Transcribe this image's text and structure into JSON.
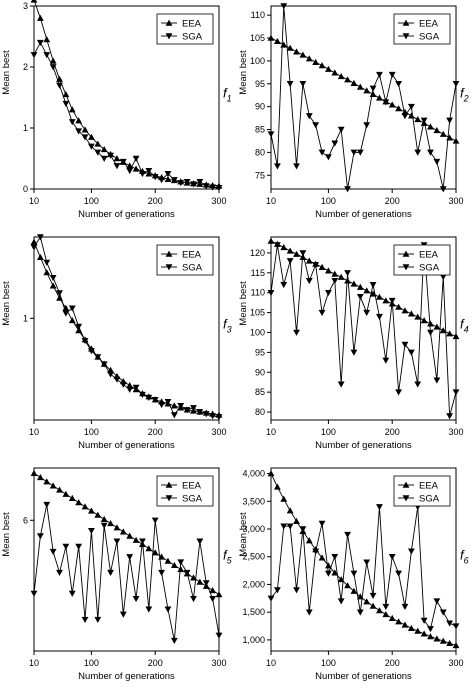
{
  "chart_data": [
    {
      "type": "line",
      "panel_label": "f",
      "panel_label_sub": "1",
      "xlabel": "Number of generations",
      "ylabel": "Mean best",
      "xlim": [
        10,
        300
      ],
      "ylim": [
        0,
        3
      ],
      "x_ticks": [
        10,
        100,
        200,
        300
      ],
      "y_ticks": [
        0,
        1,
        2,
        3
      ],
      "legend": "top-right",
      "x": [
        10,
        20,
        30,
        40,
        50,
        60,
        70,
        80,
        90,
        100,
        110,
        120,
        130,
        140,
        150,
        160,
        170,
        180,
        190,
        200,
        210,
        220,
        230,
        240,
        250,
        260,
        270,
        280,
        290,
        300
      ],
      "series": [
        {
          "name": "EEA",
          "marker": "triangle-up",
          "values": [
            3.1,
            2.8,
            2.45,
            2.1,
            1.8,
            1.55,
            1.3,
            1.12,
            0.97,
            0.85,
            0.74,
            0.65,
            0.57,
            0.5,
            0.44,
            0.38,
            0.33,
            0.29,
            0.25,
            0.22,
            0.19,
            0.16,
            0.14,
            0.12,
            0.1,
            0.09,
            0.08,
            0.07,
            0.06,
            0.05
          ]
        },
        {
          "name": "SGA",
          "marker": "triangle-down",
          "values": [
            2.2,
            2.4,
            2.2,
            2.0,
            1.7,
            1.4,
            1.1,
            0.95,
            0.85,
            0.7,
            0.6,
            0.5,
            0.55,
            0.38,
            0.45,
            0.3,
            0.5,
            0.25,
            0.3,
            0.2,
            0.15,
            0.25,
            0.15,
            0.1,
            0.12,
            0.08,
            0.12,
            0.05,
            0.03,
            0.02
          ]
        }
      ]
    },
    {
      "type": "line",
      "panel_label": "f",
      "panel_label_sub": "2",
      "xlabel": "Number of generations",
      "ylabel": "Mean best",
      "xlim": [
        10,
        300
      ],
      "ylim": [
        72,
        112
      ],
      "x_ticks": [
        10,
        100,
        200,
        300
      ],
      "y_ticks": [
        75,
        80,
        85,
        90,
        95,
        100,
        105,
        110
      ],
      "legend": "top-right",
      "x": [
        10,
        20,
        30,
        40,
        50,
        60,
        70,
        80,
        90,
        100,
        110,
        120,
        130,
        140,
        150,
        160,
        170,
        180,
        190,
        200,
        210,
        220,
        230,
        240,
        250,
        260,
        270,
        280,
        290,
        300
      ],
      "series": [
        {
          "name": "EEA",
          "marker": "triangle-up",
          "values": [
            105,
            104.3,
            103.5,
            102.8,
            102,
            101.3,
            100.5,
            99.7,
            99,
            98.2,
            97.4,
            96.6,
            95.9,
            95.1,
            94.3,
            93.5,
            92.7,
            91.9,
            91.1,
            90.4,
            89.6,
            88.8,
            88,
            87.2,
            86.4,
            85.6,
            84.8,
            84,
            83.2,
            82.5
          ]
        },
        {
          "name": "SGA",
          "marker": "triangle-down",
          "values": [
            84,
            77,
            112,
            95,
            77,
            95,
            88,
            86,
            80,
            79,
            82,
            85,
            72,
            80,
            80,
            86,
            94,
            97,
            91,
            97,
            95,
            88,
            90,
            80,
            87,
            80,
            78,
            72,
            87,
            95
          ]
        }
      ]
    },
    {
      "type": "line",
      "panel_label": "f",
      "panel_label_sub": "3",
      "xlabel": "Number of generations",
      "ylabel": "Mean best",
      "xlim": [
        10,
        300
      ],
      "ylim": [
        0,
        1.8
      ],
      "x_ticks": [
        10,
        100,
        200,
        300
      ],
      "y_ticks": [
        1
      ],
      "legend": "top-right",
      "x": [
        10,
        20,
        30,
        40,
        50,
        60,
        70,
        80,
        90,
        100,
        110,
        120,
        130,
        140,
        150,
        160,
        170,
        180,
        190,
        200,
        210,
        220,
        230,
        240,
        250,
        260,
        270,
        280,
        290,
        300
      ],
      "series": [
        {
          "name": "EEA",
          "marker": "triangle-up",
          "values": [
            1.75,
            1.6,
            1.45,
            1.32,
            1.2,
            1.1,
            0.98,
            0.88,
            0.79,
            0.7,
            0.62,
            0.55,
            0.49,
            0.43,
            0.38,
            0.34,
            0.3,
            0.26,
            0.23,
            0.2,
            0.18,
            0.16,
            0.14,
            0.12,
            0.1,
            0.09,
            0.08,
            0.07,
            0.06,
            0.05
          ]
        },
        {
          "name": "SGA",
          "marker": "triangle-down",
          "values": [
            1.7,
            1.8,
            1.55,
            1.4,
            1.25,
            1.05,
            1.1,
            0.92,
            0.78,
            0.68,
            0.62,
            0.55,
            0.45,
            0.4,
            0.35,
            0.3,
            0.32,
            0.25,
            0.22,
            0.2,
            0.15,
            0.18,
            0.05,
            0.14,
            0.1,
            0.12,
            0.08,
            0.06,
            0.04,
            0.03
          ]
        }
      ]
    },
    {
      "type": "line",
      "panel_label": "f",
      "panel_label_sub": "4",
      "xlabel": "Number of generations",
      "ylabel": "Mean best",
      "xlim": [
        10,
        300
      ],
      "ylim": [
        78,
        124
      ],
      "x_ticks": [
        10,
        100,
        200,
        300
      ],
      "y_ticks": [
        80,
        85,
        90,
        95,
        100,
        105,
        110,
        115,
        120
      ],
      "legend": "top-right",
      "x": [
        10,
        20,
        30,
        40,
        50,
        60,
        70,
        80,
        90,
        100,
        110,
        120,
        130,
        140,
        150,
        160,
        170,
        180,
        190,
        200,
        210,
        220,
        230,
        240,
        250,
        260,
        270,
        280,
        290,
        300
      ],
      "series": [
        {
          "name": "EEA",
          "marker": "triangle-up",
          "values": [
            123,
            122.2,
            121.4,
            120.5,
            119.7,
            118.9,
            118,
            117.2,
            116.4,
            115.5,
            114.7,
            113.9,
            113,
            112.2,
            111.4,
            110.5,
            109.7,
            108.9,
            108,
            107.2,
            106.4,
            105.5,
            104.7,
            103.9,
            103,
            102.2,
            101.4,
            100.5,
            99.7,
            99
          ]
        },
        {
          "name": "SGA",
          "marker": "triangle-down",
          "values": [
            110,
            122,
            112,
            118,
            100,
            120,
            113,
            117,
            105,
            110,
            113,
            87,
            115,
            95,
            109,
            105,
            112,
            104,
            93,
            108,
            85,
            97,
            95,
            87,
            122,
            100,
            88,
            114,
            79,
            85
          ]
        }
      ]
    },
    {
      "type": "line",
      "panel_label": "f",
      "panel_label_sub": "5",
      "xlabel": "Number of generations",
      "ylabel": "Mean best",
      "xlim": [
        10,
        300
      ],
      "ylim": [
        3.5,
        7
      ],
      "x_ticks": [
        10,
        100,
        200,
        300
      ],
      "y_ticks": [
        6
      ],
      "legend": "top-right",
      "x": [
        10,
        20,
        30,
        40,
        50,
        60,
        70,
        80,
        90,
        100,
        110,
        120,
        130,
        140,
        150,
        160,
        170,
        180,
        190,
        200,
        210,
        220,
        230,
        240,
        250,
        260,
        270,
        280,
        290,
        300
      ],
      "series": [
        {
          "name": "EEA",
          "marker": "triangle-up",
          "values": [
            6.9,
            6.82,
            6.74,
            6.66,
            6.58,
            6.5,
            6.42,
            6.34,
            6.26,
            6.18,
            6.1,
            6.02,
            5.94,
            5.86,
            5.78,
            5.7,
            5.62,
            5.54,
            5.46,
            5.38,
            5.3,
            5.22,
            5.14,
            5.06,
            4.98,
            4.9,
            4.82,
            4.74,
            4.66,
            4.58
          ]
        },
        {
          "name": "SGA",
          "marker": "triangle-down",
          "values": [
            4.6,
            5.7,
            6.3,
            5.4,
            5.0,
            5.5,
            4.6,
            5.5,
            4.1,
            5.8,
            4.1,
            5.9,
            5.0,
            5.6,
            4.2,
            5.3,
            4.5,
            5.6,
            4.3,
            6.0,
            5.0,
            4.3,
            3.7,
            5.2,
            5.0,
            4.5,
            5.6,
            4.8,
            4.5,
            3.8
          ]
        }
      ]
    },
    {
      "type": "line",
      "panel_label": "f",
      "panel_label_sub": "6",
      "xlabel": "Number of generations",
      "ylabel": "Mean best",
      "xlim": [
        10,
        300
      ],
      "ylim": [
        800,
        4100
      ],
      "x_ticks": [
        10,
        100,
        200,
        300
      ],
      "y_ticks": [
        1000,
        1500,
        2000,
        2500,
        3000,
        3500,
        4000
      ],
      "y_tick_labels": [
        "1,000",
        "1,500",
        "2,000",
        "2,500",
        "3,000",
        "3,500",
        "4,000"
      ],
      "legend": "top-right",
      "x": [
        10,
        20,
        30,
        40,
        50,
        60,
        70,
        80,
        90,
        100,
        110,
        120,
        130,
        140,
        150,
        160,
        170,
        180,
        190,
        200,
        210,
        220,
        230,
        240,
        250,
        260,
        270,
        280,
        290,
        300
      ],
      "series": [
        {
          "name": "EEA",
          "marker": "triangle-up",
          "values": [
            4000,
            3760,
            3540,
            3330,
            3140,
            2960,
            2790,
            2630,
            2480,
            2340,
            2210,
            2090,
            1980,
            1880,
            1780,
            1690,
            1610,
            1530,
            1460,
            1390,
            1330,
            1270,
            1210,
            1160,
            1110,
            1060,
            1020,
            980,
            940,
            900
          ]
        },
        {
          "name": "SGA",
          "marker": "triangle-down",
          "values": [
            1750,
            1900,
            3050,
            3050,
            1900,
            3000,
            1500,
            2600,
            3100,
            2200,
            2500,
            1700,
            2900,
            2200,
            1500,
            2400,
            1800,
            3400,
            1600,
            2500,
            2200,
            1600,
            2600,
            3400,
            1350,
            1200,
            1700,
            1500,
            1300,
            1250
          ]
        }
      ]
    }
  ]
}
